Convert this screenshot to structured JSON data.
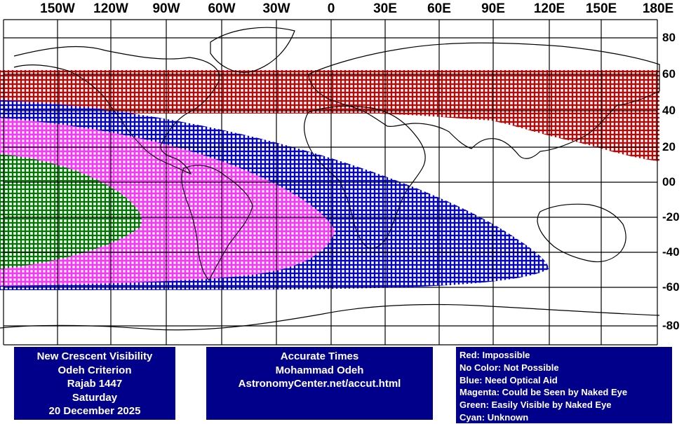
{
  "map": {
    "lon_labels": [
      "150W",
      "120W",
      "90W",
      "60W",
      "30W",
      "0",
      "30E",
      "60E",
      "90E",
      "120E",
      "150E",
      "180E"
    ],
    "lat_labels": [
      "80",
      "60",
      "40",
      "20",
      "00",
      "-20",
      "-40",
      "-60",
      "-80"
    ],
    "lon_values": [
      -150,
      -120,
      -90,
      -60,
      -30,
      0,
      30,
      60,
      90,
      120,
      150,
      180
    ],
    "lat_values": [
      80,
      60,
      40,
      20,
      0,
      -20,
      -40,
      -60,
      -80
    ],
    "zones": {
      "red_impossible": {
        "color": "#cc0000",
        "lat_range": [
          41,
          61
        ]
      },
      "blue_optical_aid": {
        "color": "#0000ee"
      },
      "magenta_naked_eye": {
        "color": "#ff33ff"
      },
      "green_easily_visible": {
        "color": "#007700"
      }
    }
  },
  "info_panel": {
    "line1": "New Crescent Visibility",
    "line2": "Odeh Criterion",
    "line3": "Rajab 1447",
    "line4": "Saturday",
    "line5": "20 December 2025"
  },
  "credits_panel": {
    "line1": "Accurate Times",
    "line2": "Mohammad Odeh",
    "line3": "AstronomyCenter.net/accut.html"
  },
  "legend": {
    "red": "Red: Impossible",
    "none": "No Color: Not Possible",
    "blue": "Blue: Need Optical Aid",
    "magenta": "Magenta: Could be Seen by Naked Eye",
    "green": "Green: Easily Visible by Naked Eye",
    "cyan": "Cyan: Unknown"
  }
}
